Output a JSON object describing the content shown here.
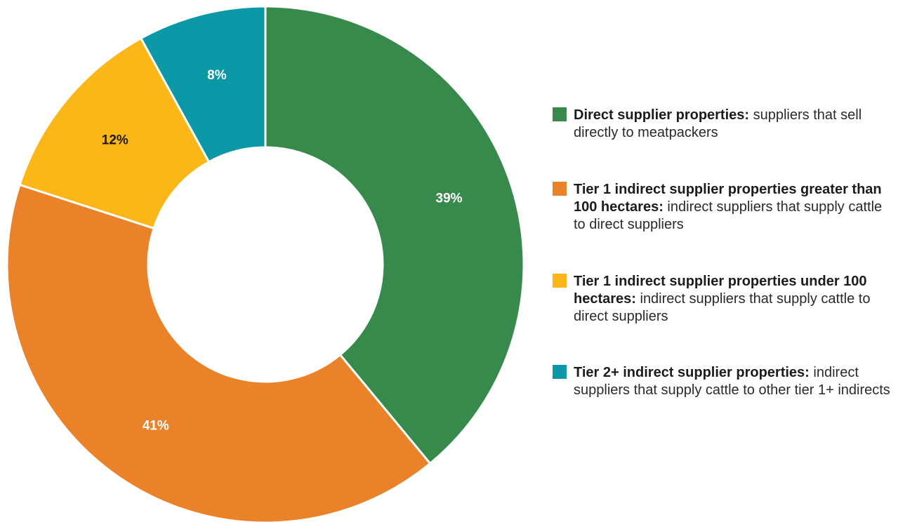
{
  "chart_data": {
    "type": "pie",
    "donut": true,
    "slices": [
      {
        "value": 39,
        "label": "39%",
        "color": "#378A4C",
        "label_color": "#ffffff",
        "legend_bold": "Direct supplier properties:",
        "legend_text": " suppliers that sell directly to meatpackers"
      },
      {
        "value": 41,
        "label": "41%",
        "color": "#EA8229",
        "label_color": "#ffffff",
        "legend_bold": "Tier 1 indirect supplier properties greater than 100 hectares:",
        "legend_text": " indirect suppliers that supply cattle to direct suppliers"
      },
      {
        "value": 12,
        "label": "12%",
        "color": "#FBB718",
        "label_color": "#1a1a1a",
        "legend_bold": "Tier 1 indirect supplier properties under 100 hectares:",
        "legend_text": " indirect suppliers that supply cattle to direct suppliers"
      },
      {
        "value": 8,
        "label": "8%",
        "color": "#0C98A6",
        "label_color": "#ffffff",
        "legend_bold": "Tier 2+ indirect supplier properties:",
        "legend_text": " indirect suppliers that supply cattle to other tier 1+ indirects"
      }
    ],
    "legend_position": "right"
  }
}
